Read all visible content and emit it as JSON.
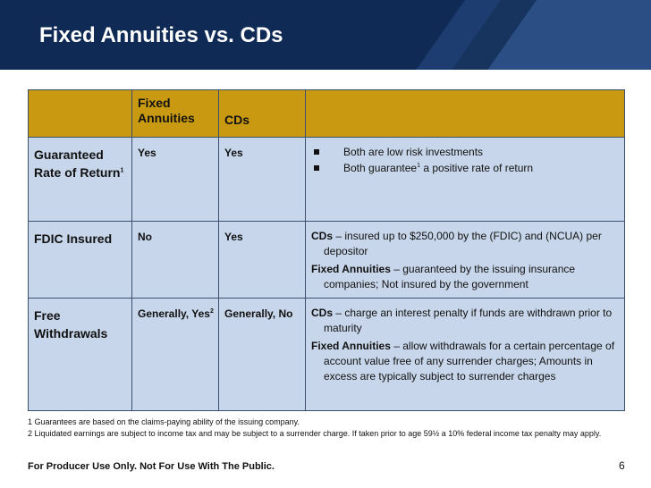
{
  "slide": {
    "title": "Fixed Annuities vs. CDs",
    "page_number": "6",
    "colors": {
      "header_bg": "#102a56",
      "table_header_bg": "#c99a11",
      "table_body_bg": "#c7d6ea"
    }
  },
  "table": {
    "headers": [
      "",
      "Fixed\nAnnuities",
      "CDs",
      ""
    ],
    "rows": [
      {
        "label": "Guaranteed Rate of Return",
        "label_sup": "1",
        "fixed": "Yes",
        "fixed_sup": "",
        "cds": "Yes",
        "bullets": [
          {
            "text": "Both are low risk investments",
            "sup": "",
            "after": ""
          },
          {
            "text": "Both guarantee",
            "sup": "1",
            "after": " a positive rate of return"
          }
        ]
      },
      {
        "label": "FDIC Insured",
        "label_sup": "",
        "fixed": "No",
        "fixed_sup": "",
        "cds": "Yes",
        "entries": [
          {
            "bold": "CDs",
            "text": " – insured up to $250,000 by the (FDIC) and (NCUA) per depositor"
          },
          {
            "bold": "Fixed Annuities",
            "text": " – guaranteed by the issuing insurance companies;  Not insured by the government"
          }
        ]
      },
      {
        "label": "Free Withdrawals",
        "label_sup": "",
        "fixed": "Generally, Yes",
        "fixed_sup": "2",
        "cds": "Generally, No",
        "entries": [
          {
            "bold": "CDs",
            "text": " – charge an interest penalty if funds are withdrawn prior to maturity"
          },
          {
            "bold": "Fixed Annuities",
            "text": " – allow withdrawals for a certain percentage of account value free of any surrender charges;   Amounts in excess are typically subject to surrender charges"
          }
        ]
      }
    ]
  },
  "footnotes": [
    "1 Guarantees are based on the claims-paying ability of the issuing company.",
    "2 Liquidated earnings are subject to income tax and may be subject to a surrender charge. If taken prior to age 59½ a 10% federal income tax penalty may apply."
  ],
  "disclaimer": "For Producer Use Only. Not For Use With The Public."
}
